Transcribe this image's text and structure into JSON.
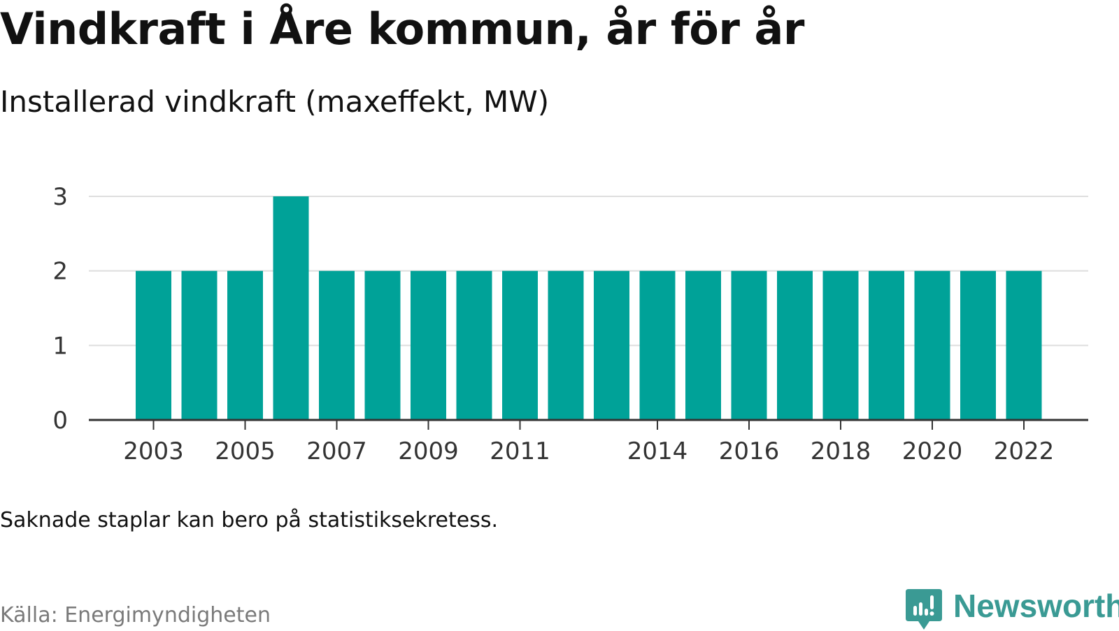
{
  "title": "Vindkraft i Åre kommun, år för år",
  "subtitle": "Installerad vindkraft (maxeffekt, MW)",
  "chart_data": {
    "type": "bar",
    "title": "Vindkraft i Åre kommun, år för år",
    "subtitle": "Installerad vindkraft (maxeffekt, MW)",
    "xlabel": "",
    "ylabel": "",
    "categories": [
      "2003",
      "2004",
      "2005",
      "2006",
      "2007",
      "2008",
      "2009",
      "2010",
      "2011",
      "2012",
      "2013",
      "2014",
      "2015",
      "2016",
      "2017",
      "2018",
      "2019",
      "2020",
      "2021",
      "2022"
    ],
    "values": [
      2,
      2,
      2,
      3,
      2,
      2,
      2,
      2,
      2,
      2,
      2,
      2,
      2,
      2,
      2,
      2,
      2,
      2,
      2,
      2
    ],
    "ylim": [
      0,
      3
    ],
    "yticks": [
      0,
      1,
      2,
      3
    ],
    "xtick_labels": [
      "2003",
      "2005",
      "2007",
      "2009",
      "2011",
      "2014",
      "2016",
      "2018",
      "2020",
      "2022"
    ],
    "grid": "horizontal",
    "bar_color": "#00a298"
  },
  "footnote": "Saknade staplar kan bero på statistiksekretess.",
  "source": "Källa: Energimyndigheten",
  "brand": {
    "name": "Newsworthy",
    "icon": "newsworthy-logo-icon",
    "color": "#3a9a94"
  }
}
